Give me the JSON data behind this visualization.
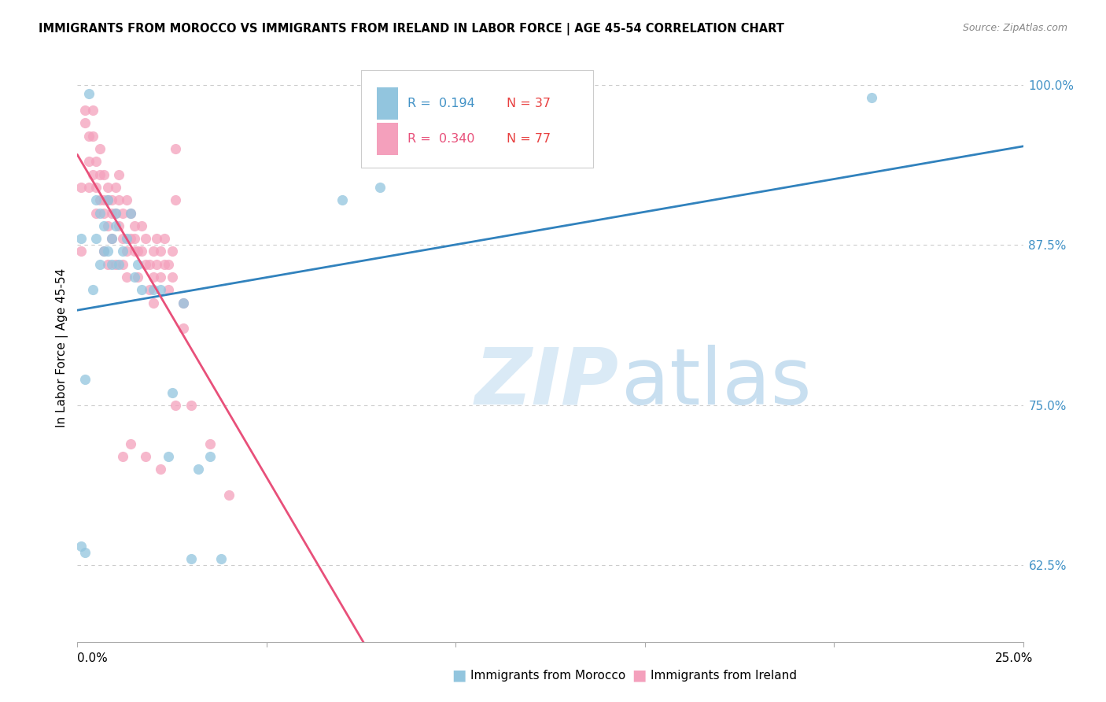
{
  "title": "IMMIGRANTS FROM MOROCCO VS IMMIGRANTS FROM IRELAND IN LABOR FORCE | AGE 45-54 CORRELATION CHART",
  "source": "Source: ZipAtlas.com",
  "ylabel": "In Labor Force | Age 45-54",
  "yticks": [
    0.625,
    0.75,
    0.875,
    1.0
  ],
  "ytick_labels": [
    "62.5%",
    "75.0%",
    "87.5%",
    "100.0%"
  ],
  "xtick_labels": [
    "0.0%",
    "25.0%"
  ],
  "xlim": [
    0.0,
    0.25
  ],
  "ylim": [
    0.565,
    1.025
  ],
  "legend_R_morocco": "0.194",
  "legend_N_morocco": "37",
  "legend_R_ireland": "0.340",
  "legend_N_ireland": "77",
  "color_morocco": "#92c5de",
  "color_ireland": "#f4a0bc",
  "trendline_color_morocco": "#3182bd",
  "trendline_color_ireland": "#e8507a",
  "ytick_color": "#4292c6",
  "watermark_zip": "ZIP",
  "watermark_atlas": "atlas",
  "watermark_color": "#daeaf6",
  "label_color_R_morocco": "#4292c6",
  "label_color_R_ireland": "#e8507a",
  "label_color_N": "#e84040",
  "morocco_x": [
    0.001,
    0.002,
    0.003,
    0.004,
    0.005,
    0.005,
    0.006,
    0.006,
    0.007,
    0.007,
    0.008,
    0.008,
    0.009,
    0.009,
    0.01,
    0.01,
    0.011,
    0.012,
    0.013,
    0.014,
    0.015,
    0.016,
    0.017,
    0.02,
    0.022,
    0.024,
    0.025,
    0.028,
    0.03,
    0.032,
    0.035,
    0.038,
    0.07,
    0.08,
    0.21,
    0.001,
    0.002
  ],
  "morocco_y": [
    0.88,
    0.635,
    0.993,
    0.84,
    0.91,
    0.88,
    0.86,
    0.9,
    0.87,
    0.89,
    0.91,
    0.87,
    0.88,
    0.86,
    0.9,
    0.89,
    0.86,
    0.87,
    0.88,
    0.9,
    0.85,
    0.86,
    0.84,
    0.84,
    0.84,
    0.71,
    0.76,
    0.83,
    0.63,
    0.7,
    0.71,
    0.63,
    0.91,
    0.92,
    0.99,
    0.64,
    0.77
  ],
  "ireland_x": [
    0.001,
    0.001,
    0.002,
    0.002,
    0.003,
    0.003,
    0.003,
    0.004,
    0.004,
    0.004,
    0.005,
    0.005,
    0.005,
    0.006,
    0.006,
    0.006,
    0.007,
    0.007,
    0.007,
    0.007,
    0.008,
    0.008,
    0.008,
    0.008,
    0.009,
    0.009,
    0.009,
    0.01,
    0.01,
    0.01,
    0.011,
    0.011,
    0.011,
    0.012,
    0.012,
    0.012,
    0.013,
    0.013,
    0.013,
    0.014,
    0.014,
    0.015,
    0.015,
    0.015,
    0.016,
    0.016,
    0.017,
    0.017,
    0.018,
    0.018,
    0.019,
    0.019,
    0.02,
    0.02,
    0.02,
    0.021,
    0.021,
    0.022,
    0.022,
    0.023,
    0.023,
    0.024,
    0.024,
    0.025,
    0.025,
    0.026,
    0.026,
    0.026,
    0.028,
    0.028,
    0.03,
    0.035,
    0.04,
    0.012,
    0.014,
    0.018,
    0.022
  ],
  "ireland_y": [
    0.87,
    0.92,
    0.98,
    0.97,
    0.94,
    0.96,
    0.92,
    0.93,
    0.96,
    0.98,
    0.94,
    0.92,
    0.9,
    0.93,
    0.91,
    0.95,
    0.93,
    0.91,
    0.9,
    0.87,
    0.92,
    0.91,
    0.89,
    0.86,
    0.9,
    0.91,
    0.88,
    0.92,
    0.9,
    0.86,
    0.91,
    0.93,
    0.89,
    0.9,
    0.88,
    0.86,
    0.91,
    0.87,
    0.85,
    0.9,
    0.88,
    0.88,
    0.89,
    0.87,
    0.87,
    0.85,
    0.89,
    0.87,
    0.88,
    0.86,
    0.86,
    0.84,
    0.87,
    0.85,
    0.83,
    0.88,
    0.86,
    0.87,
    0.85,
    0.88,
    0.86,
    0.86,
    0.84,
    0.85,
    0.87,
    0.95,
    0.91,
    0.75,
    0.83,
    0.81,
    0.75,
    0.72,
    0.68,
    0.71,
    0.72,
    0.71,
    0.7
  ]
}
